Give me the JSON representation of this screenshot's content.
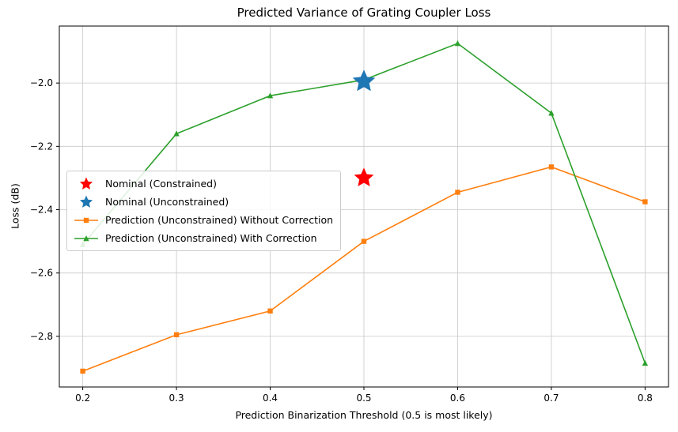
{
  "chart_data": {
    "type": "line",
    "title": "Predicted Variance of Grating Coupler Loss",
    "xlabel": "Prediction Binarization Threshold (0.5 is most likely)",
    "ylabel": "Loss (dB)",
    "xlim": [
      0.175,
      0.825
    ],
    "ylim": [
      -2.96,
      -1.82
    ],
    "xticks": [
      0.2,
      0.3,
      0.4,
      0.5,
      0.6,
      0.7,
      0.8
    ],
    "yticks": [
      -2.0,
      -2.2,
      -2.4,
      -2.6,
      -2.8
    ],
    "grid": true,
    "x": [
      0.2,
      0.3,
      0.4,
      0.5,
      0.6,
      0.7,
      0.8
    ],
    "series": [
      {
        "name": "Prediction (Unconstrained) Without Correction",
        "color": "#ff7f0e",
        "marker": "square",
        "values": [
          -2.91,
          -2.795,
          -2.72,
          -2.5,
          -2.345,
          -2.265,
          -2.375
        ]
      },
      {
        "name": "Prediction (Unconstrained) With Correction",
        "color": "#2ca02c",
        "marker": "triangle",
        "values": [
          -2.51,
          -2.16,
          -2.04,
          -1.99,
          -1.875,
          -2.095,
          -2.885
        ]
      }
    ],
    "points": [
      {
        "name": "Nominal (Constrained)",
        "color": "#ff0000",
        "marker": "star",
        "x": 0.5,
        "y": -2.3,
        "size": 13
      },
      {
        "name": "Nominal (Unconstrained)",
        "color": "#1f77b4",
        "marker": "star",
        "x": 0.5,
        "y": -1.995,
        "size": 15
      }
    ],
    "legend": {
      "position": "center-left",
      "entries": [
        {
          "label": "Nominal (Constrained)",
          "marker": "star",
          "color": "#ff0000",
          "line": false
        },
        {
          "label": "Nominal (Unconstrained)",
          "marker": "star",
          "color": "#1f77b4",
          "line": false
        },
        {
          "label": "Prediction (Unconstrained) Without Correction",
          "marker": "square",
          "color": "#ff7f0e",
          "line": true
        },
        {
          "label": "Prediction (Unconstrained) With Correction",
          "marker": "triangle",
          "color": "#2ca02c",
          "line": true
        }
      ]
    },
    "style": {
      "grid_color": "#c8c8c8",
      "spine_color": "#000000",
      "tick_label_color": "#000000"
    }
  }
}
